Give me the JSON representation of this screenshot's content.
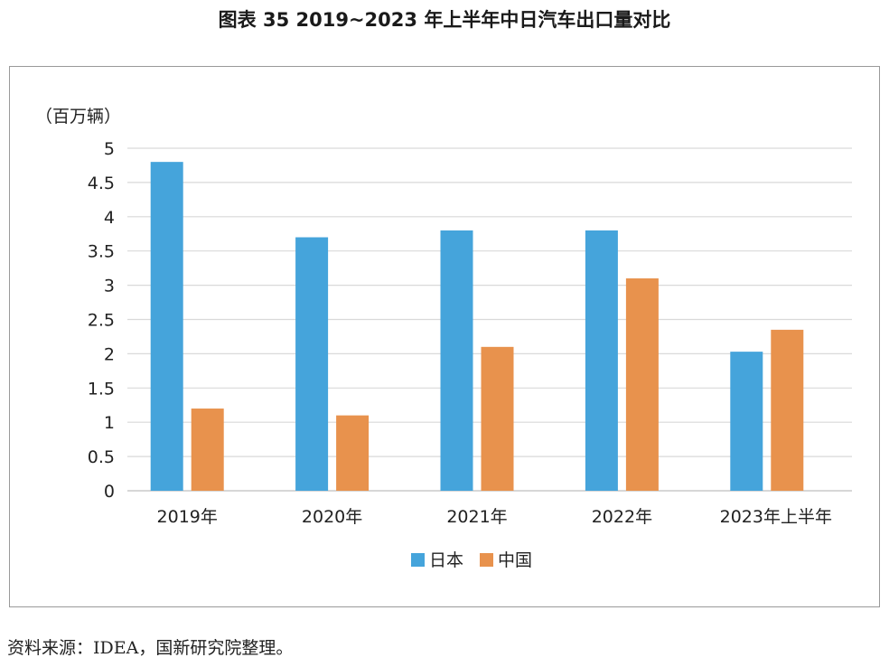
{
  "title": "图表 35  2019~2023 年上半年中日汽车出口量对比",
  "source": "资料来源：IDEA，国新研究院整理。",
  "colors": {
    "japan": "#45a4db",
    "china": "#e8924d",
    "grid": "#d9d9d9",
    "axis": "#bfbfbf"
  },
  "chart_data": {
    "type": "bar",
    "ylabel": "（百万辆）",
    "categories": [
      "2019年",
      "2020年",
      "2021年",
      "2022年",
      "2023年上半年"
    ],
    "series": [
      {
        "name": "日本",
        "values": [
          4.8,
          3.7,
          3.8,
          3.8,
          2.03
        ]
      },
      {
        "name": "中国",
        "values": [
          1.2,
          1.1,
          2.1,
          3.1,
          2.35
        ]
      }
    ],
    "ylim": [
      0,
      5
    ],
    "yticks": [
      "0",
      "0.5",
      "1",
      "1.5",
      "2",
      "2.5",
      "3",
      "3.5",
      "4",
      "4.5",
      "5"
    ],
    "grid": true,
    "legend": "bottom"
  }
}
